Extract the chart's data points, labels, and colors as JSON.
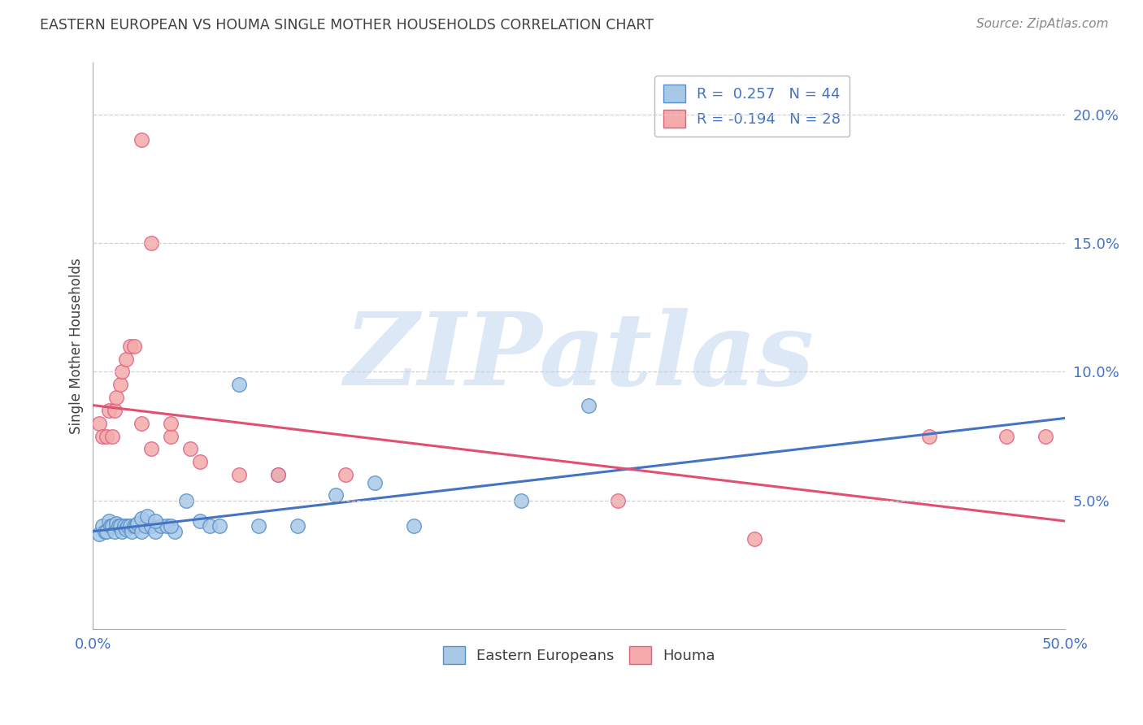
{
  "title": "EASTERN EUROPEAN VS HOUMA SINGLE MOTHER HOUSEHOLDS CORRELATION CHART",
  "source": "Source: ZipAtlas.com",
  "ylabel": "Single Mother Households",
  "xlim": [
    0.0,
    0.5
  ],
  "ylim": [
    0.0,
    0.22
  ],
  "yticks_right": [
    0.05,
    0.1,
    0.15,
    0.2
  ],
  "ytick_right_labels": [
    "5.0%",
    "10.0%",
    "15.0%",
    "20.0%"
  ],
  "blue_color": "#a8c8e8",
  "blue_edge_color": "#5590c8",
  "pink_color": "#f4aaaa",
  "pink_edge_color": "#e06080",
  "blue_line_color": "#4472c4",
  "pink_line_color": "#e05070",
  "legend_blue_label": "R =  0.257   N = 44",
  "legend_pink_label": "R = -0.194   N = 28",
  "legend_blue_series": "Eastern Europeans",
  "legend_pink_series": "Houma",
  "watermark": "ZIPatlas",
  "blue_scatter_x": [
    0.003,
    0.005,
    0.006,
    0.007,
    0.008,
    0.009,
    0.01,
    0.011,
    0.012,
    0.013,
    0.014,
    0.015,
    0.016,
    0.017,
    0.018,
    0.019,
    0.02,
    0.021,
    0.022,
    0.023,
    0.025,
    0.027,
    0.03,
    0.032,
    0.035,
    0.038,
    0.042,
    0.048,
    0.055,
    0.06,
    0.065,
    0.075,
    0.085,
    0.095,
    0.105,
    0.125,
    0.145,
    0.165,
    0.22,
    0.255,
    0.025,
    0.028,
    0.032,
    0.04
  ],
  "blue_scatter_y": [
    0.037,
    0.04,
    0.038,
    0.038,
    0.042,
    0.04,
    0.04,
    0.038,
    0.041,
    0.04,
    0.04,
    0.038,
    0.04,
    0.039,
    0.04,
    0.04,
    0.038,
    0.04,
    0.04,
    0.041,
    0.038,
    0.04,
    0.04,
    0.038,
    0.04,
    0.04,
    0.038,
    0.05,
    0.042,
    0.04,
    0.04,
    0.095,
    0.04,
    0.06,
    0.04,
    0.052,
    0.057,
    0.04,
    0.05,
    0.087,
    0.043,
    0.044,
    0.042,
    0.04
  ],
  "blue_trend_x": [
    0.0,
    0.5
  ],
  "blue_trend_y": [
    0.038,
    0.082
  ],
  "pink_scatter_x": [
    0.003,
    0.005,
    0.007,
    0.008,
    0.01,
    0.011,
    0.012,
    0.014,
    0.015,
    0.017,
    0.019,
    0.021,
    0.025,
    0.03,
    0.04,
    0.055,
    0.075,
    0.095,
    0.13,
    0.34,
    0.43,
    0.47,
    0.49,
    0.025,
    0.03,
    0.04,
    0.05,
    0.27
  ],
  "pink_scatter_y": [
    0.08,
    0.075,
    0.075,
    0.085,
    0.075,
    0.085,
    0.09,
    0.095,
    0.1,
    0.105,
    0.11,
    0.11,
    0.08,
    0.07,
    0.075,
    0.065,
    0.06,
    0.06,
    0.06,
    0.035,
    0.075,
    0.075,
    0.075,
    0.19,
    0.15,
    0.08,
    0.07,
    0.05
  ],
  "pink_trend_x": [
    0.0,
    0.5
  ],
  "pink_trend_y": [
    0.087,
    0.042
  ],
  "background_color": "#ffffff",
  "grid_color": "#d0d0d0",
  "title_color": "#404040",
  "axis_color": "#4472c4",
  "watermark_color": "#dce8f5"
}
